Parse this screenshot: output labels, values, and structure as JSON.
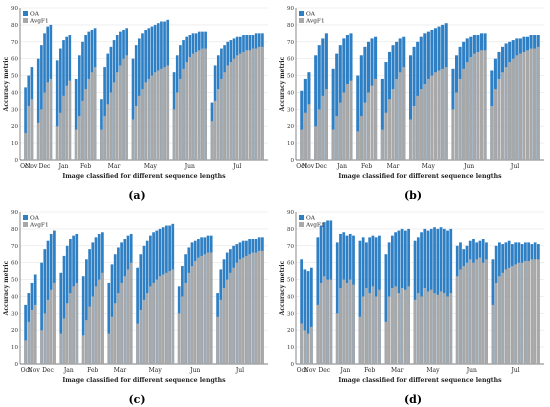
{
  "colors": {
    "oa": "#2e7fc4",
    "avgf1": "#a8a8a8",
    "axis": "#555555",
    "grid": "#e6e6e6"
  },
  "chart_data": [
    {
      "type": "bar",
      "caption": "(a)",
      "ylabel": "Accuracy metric",
      "xlabel": "Image classified for different sequence lengths",
      "ylim": [
        0,
        90
      ],
      "yticks": [
        0,
        10,
        20,
        30,
        40,
        50,
        60,
        70,
        80,
        90
      ],
      "legend": [
        "OA",
        "AvgF1"
      ],
      "months": [
        "Oct",
        "Nov",
        "Dec",
        "Jan",
        "Feb",
        "Mar",
        "May",
        "Jun",
        "Jul"
      ],
      "groups": [
        {
          "oa": [
            43,
            50,
            55
          ],
          "avgf1": [
            16,
            32,
            36
          ]
        },
        {
          "oa": [
            60,
            68,
            75,
            79,
            80
          ],
          "avgf1": [
            22,
            30,
            40,
            46,
            48
          ]
        },
        {
          "oa": [
            59,
            66,
            71,
            73,
            74
          ],
          "avgf1": [
            20,
            28,
            38,
            44,
            47
          ]
        },
        {
          "oa": [
            48,
            62,
            70,
            74,
            76,
            77,
            78
          ],
          "avgf1": [
            18,
            26,
            35,
            42,
            48,
            52,
            55
          ]
        },
        {
          "oa": [
            36,
            55,
            63,
            67,
            71,
            74,
            76,
            77,
            78
          ],
          "avgf1": [
            18,
            26,
            33,
            40,
            46,
            52,
            56,
            60,
            62
          ]
        },
        {
          "oa": [
            60,
            68,
            72,
            75,
            77,
            78,
            79,
            80,
            81,
            82,
            82,
            83
          ],
          "avgf1": [
            24,
            32,
            38,
            42,
            46,
            48,
            50,
            52,
            53,
            54,
            55,
            56
          ]
        },
        {
          "oa": [
            52,
            62,
            68,
            71,
            73,
            74,
            75,
            75,
            76,
            76,
            76
          ],
          "avgf1": [
            30,
            40,
            48,
            54,
            58,
            61,
            63,
            64,
            65,
            66,
            66
          ]
        },
        {
          "oa": [
            34,
            56,
            62,
            66,
            68,
            70,
            71,
            72,
            73,
            73,
            74,
            74,
            74,
            74,
            75,
            75,
            75
          ],
          "avgf1": [
            23,
            35,
            42,
            48,
            52,
            56,
            58,
            60,
            62,
            63,
            64,
            65,
            65,
            66,
            66,
            67,
            67
          ]
        }
      ]
    },
    {
      "type": "bar",
      "caption": "(b)",
      "ylabel": "Accuracy metric",
      "xlabel": "Image classified for different sequence lengths",
      "ylim": [
        0,
        90
      ],
      "yticks": [
        0,
        10,
        20,
        30,
        40,
        50,
        60,
        70,
        80,
        90
      ],
      "legend": [
        "OA",
        "AvgF1"
      ],
      "months": [
        "Oct",
        "Nov",
        "Dec",
        "Jan",
        "Feb",
        "Mar",
        "May",
        "Jun",
        "Jul"
      ],
      "groups": [
        {
          "oa": [
            41,
            48,
            52
          ],
          "avgf1": [
            18,
            28,
            33
          ]
        },
        {
          "oa": [
            62,
            68,
            72,
            75
          ],
          "avgf1": [
            20,
            30,
            38,
            42
          ]
        },
        {
          "oa": [
            54,
            63,
            68,
            72,
            74,
            75
          ],
          "avgf1": [
            18,
            26,
            34,
            40,
            45,
            47
          ]
        },
        {
          "oa": [
            50,
            62,
            67,
            70,
            72,
            73
          ],
          "avgf1": [
            17,
            26,
            34,
            40,
            44,
            48
          ]
        },
        {
          "oa": [
            48,
            58,
            64,
            68,
            70,
            72,
            73
          ],
          "avgf1": [
            18,
            28,
            36,
            42,
            48,
            52,
            55
          ]
        },
        {
          "oa": [
            62,
            67,
            70,
            73,
            75,
            76,
            77,
            78,
            79,
            80,
            81
          ],
          "avgf1": [
            24,
            32,
            38,
            42,
            45,
            48,
            50,
            52,
            53,
            54,
            55
          ]
        },
        {
          "oa": [
            54,
            62,
            67,
            70,
            72,
            73,
            74,
            74,
            75,
            75
          ],
          "avgf1": [
            30,
            40,
            48,
            54,
            58,
            61,
            63,
            64,
            65,
            65
          ]
        },
        {
          "oa": [
            53,
            60,
            64,
            67,
            69,
            70,
            71,
            72,
            72,
            73,
            73,
            74,
            74,
            74
          ],
          "avgf1": [
            32,
            42,
            48,
            52,
            55,
            58,
            60,
            62,
            63,
            64,
            65,
            66,
            66,
            67
          ]
        }
      ]
    },
    {
      "type": "bar",
      "caption": "(c)",
      "ylabel": "Accuracy metric",
      "xlabel": "Image classified for different sequence lengths",
      "ylim": [
        0,
        90
      ],
      "yticks": [
        0,
        10,
        20,
        30,
        40,
        50,
        60,
        70,
        80,
        90
      ],
      "legend": [
        "OA",
        "AvgF1"
      ],
      "months": [
        "Oct",
        "Nov",
        "Dec",
        "Jan",
        "Feb",
        "Mar",
        "May",
        "Jun",
        "Jul"
      ],
      "groups": [
        {
          "oa": [
            35,
            42,
            48,
            53
          ],
          "avgf1": [
            14,
            25,
            32,
            35
          ]
        },
        {
          "oa": [
            60,
            68,
            73,
            77,
            79
          ],
          "avgf1": [
            20,
            30,
            38,
            44,
            48
          ]
        },
        {
          "oa": [
            54,
            64,
            70,
            74,
            76,
            77
          ],
          "avgf1": [
            18,
            27,
            36,
            42,
            46,
            48
          ]
        },
        {
          "oa": [
            52,
            62,
            68,
            72,
            75,
            77,
            78
          ],
          "avgf1": [
            17,
            26,
            34,
            40,
            46,
            50,
            54
          ]
        },
        {
          "oa": [
            48,
            59,
            65,
            69,
            72,
            74,
            76,
            77
          ],
          "avgf1": [
            18,
            28,
            36,
            42,
            48,
            52,
            56,
            60
          ]
        },
        {
          "oa": [
            57,
            65,
            70,
            73,
            76,
            78,
            79,
            80,
            81,
            82,
            82,
            83
          ],
          "avgf1": [
            24,
            32,
            38,
            42,
            46,
            48,
            50,
            52,
            53,
            54,
            55,
            56
          ]
        },
        {
          "oa": [
            46,
            58,
            65,
            69,
            72,
            73,
            74,
            75,
            75,
            76,
            76
          ],
          "avgf1": [
            30,
            40,
            48,
            54,
            58,
            61,
            63,
            64,
            65,
            66,
            66
          ]
        },
        {
          "oa": [
            42,
            56,
            62,
            66,
            68,
            70,
            71,
            72,
            73,
            73,
            74,
            74,
            74,
            75,
            75
          ],
          "avgf1": [
            28,
            38,
            45,
            50,
            54,
            57,
            60,
            62,
            63,
            64,
            65,
            66,
            66,
            67,
            67
          ]
        }
      ]
    },
    {
      "type": "bar",
      "caption": "(d)",
      "ylabel": "Accuracy metric",
      "xlabel": "Image classified for different sequence lengths",
      "ylim": [
        0,
        90
      ],
      "yticks": [
        0,
        10,
        20,
        30,
        40,
        50,
        60,
        70,
        80,
        90
      ],
      "legend": [
        "OA",
        "AvgF1"
      ],
      "months": [
        "Oct",
        "Nov",
        "Dec",
        "Jan",
        "Feb",
        "Mar",
        "May",
        "Jun",
        "Jul"
      ],
      "groups": [
        {
          "oa": [
            62,
            56,
            55,
            57
          ],
          "avgf1": [
            24,
            20,
            18,
            22
          ]
        },
        {
          "oa": [
            75,
            82,
            84,
            85,
            85
          ],
          "avgf1": [
            35,
            48,
            52,
            50,
            50
          ]
        },
        {
          "oa": [
            72,
            77,
            78,
            76,
            77,
            76
          ],
          "avgf1": [
            30,
            45,
            50,
            48,
            50,
            47
          ]
        },
        {
          "oa": [
            73,
            75,
            72,
            75,
            76,
            75,
            76
          ],
          "avgf1": [
            28,
            40,
            45,
            42,
            46,
            40,
            44
          ]
        },
        {
          "oa": [
            65,
            72,
            76,
            78,
            79,
            80,
            79,
            80
          ],
          "avgf1": [
            25,
            40,
            45,
            46,
            42,
            45,
            44,
            46
          ]
        },
        {
          "oa": [
            73,
            75,
            78,
            80,
            79,
            80,
            81,
            80,
            81,
            80,
            79,
            80
          ],
          "avgf1": [
            38,
            42,
            40,
            45,
            43,
            44,
            42,
            41,
            43,
            42,
            40,
            42
          ]
        },
        {
          "oa": [
            70,
            72,
            68,
            70,
            73,
            74,
            72,
            73,
            74,
            72
          ],
          "avgf1": [
            52,
            56,
            58,
            60,
            62,
            60,
            62,
            63,
            60,
            62
          ]
        },
        {
          "oa": [
            62,
            70,
            72,
            71,
            72,
            73,
            71,
            72,
            72,
            71,
            72,
            72,
            71,
            72,
            71
          ],
          "avgf1": [
            35,
            48,
            52,
            54,
            56,
            57,
            58,
            59,
            60,
            60,
            61,
            61,
            62,
            62,
            62
          ]
        }
      ]
    }
  ]
}
